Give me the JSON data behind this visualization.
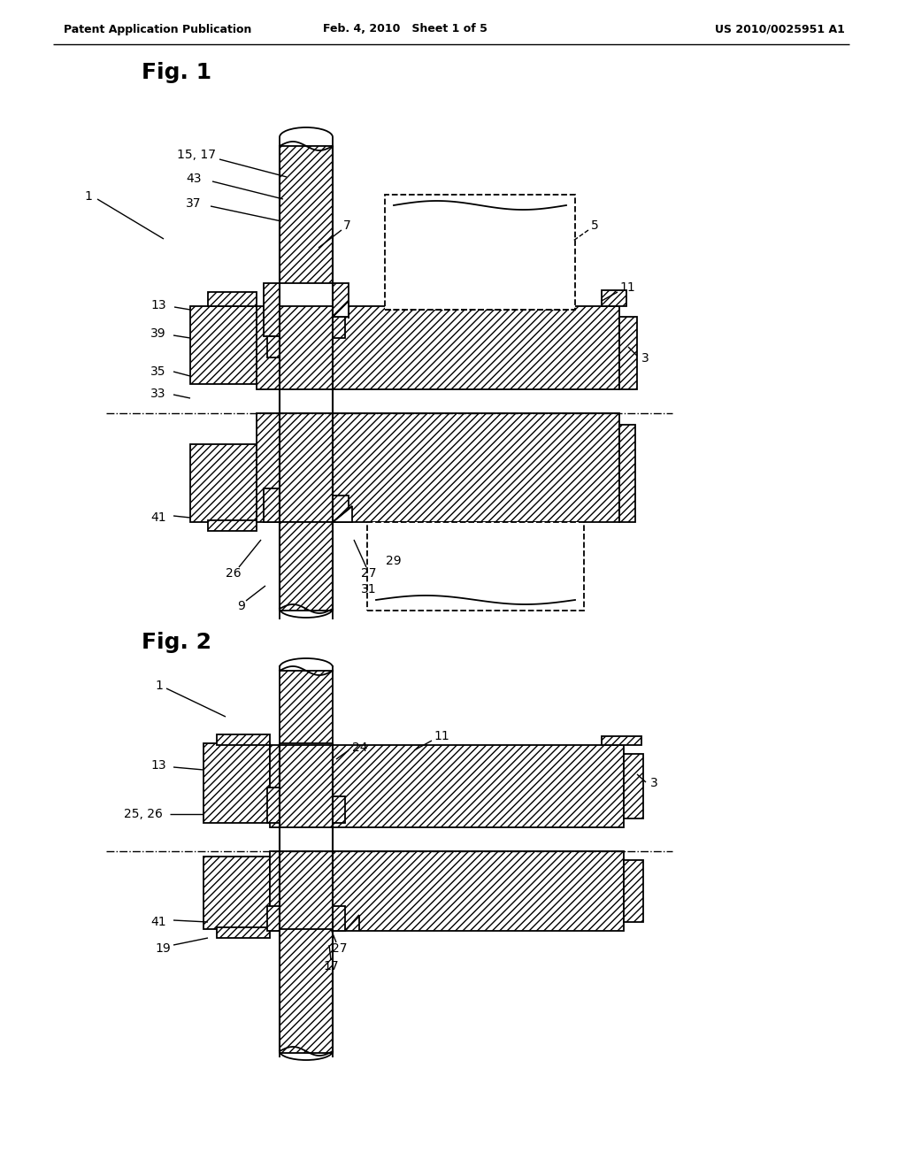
{
  "background_color": "#ffffff",
  "header_left": "Patent Application Publication",
  "header_center": "Feb. 4, 2010   Sheet 1 of 5",
  "header_right": "US 2010/0025951 A1",
  "fig1_label": "Fig. 1",
  "fig2_label": "Fig. 2",
  "line_color": "#000000"
}
